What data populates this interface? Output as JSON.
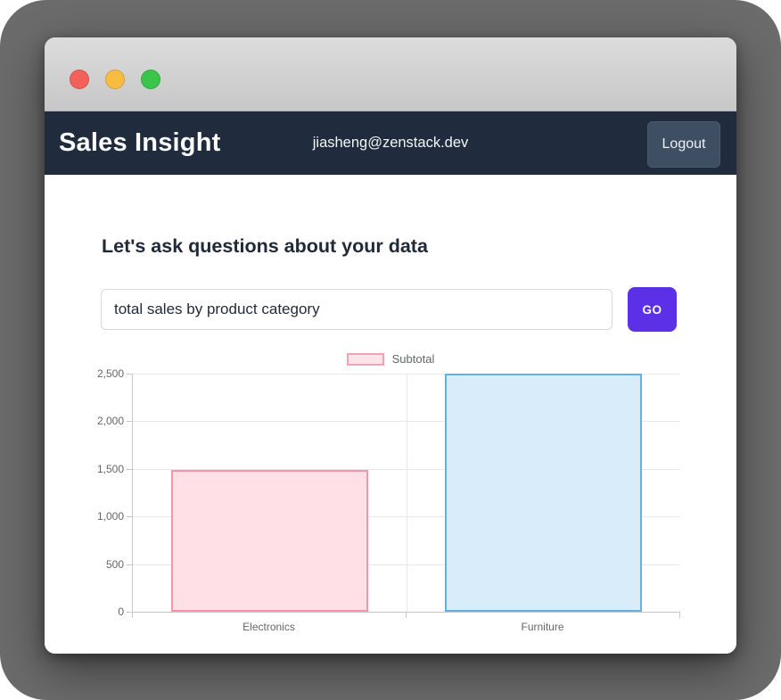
{
  "window": {
    "traffic_lights": [
      {
        "name": "close",
        "color": "#f3615b"
      },
      {
        "name": "minimize",
        "color": "#f8bd40"
      },
      {
        "name": "maximize",
        "color": "#3ac64b"
      }
    ]
  },
  "navbar": {
    "brand": "Sales Insight",
    "user_email": "jiasheng@zenstack.dev",
    "logout_label": "Logout",
    "background_color": "#202b3d"
  },
  "main": {
    "heading": "Let's ask questions about your data",
    "query_input": {
      "value": "total sales by product category"
    },
    "go_button_label": "GO",
    "accent_color": "#5b30e6"
  },
  "chart_data": {
    "type": "bar",
    "title": "",
    "categories": [
      "Electronics",
      "Furniture"
    ],
    "series": [
      {
        "name": "Subtotal",
        "values": [
          1490,
          2500
        ],
        "fill_colors": [
          "#ffe0e7",
          "#d9ecfa"
        ],
        "border_colors": [
          "#f794aa",
          "#64b2e5"
        ]
      }
    ],
    "legend": {
      "position": "top",
      "label": "Subtotal",
      "fill": "#fde4ea",
      "border": "#f4a0b5"
    },
    "xlabel": "",
    "ylabel": "",
    "ylim": [
      0,
      2500
    ],
    "ytick_step": 500,
    "grid": true
  }
}
